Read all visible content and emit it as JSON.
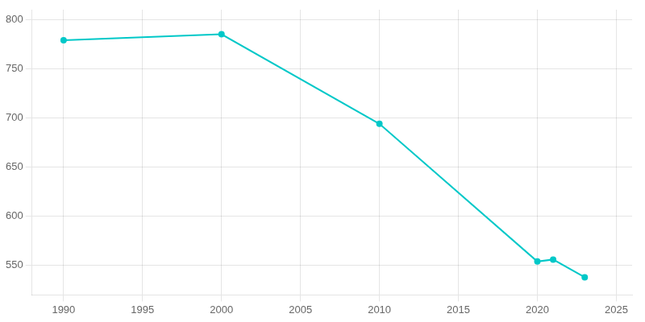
{
  "chart_data": {
    "type": "line",
    "x": [
      1990,
      2000,
      2010,
      2020,
      2021,
      2023
    ],
    "values": [
      779,
      785,
      694,
      554,
      556,
      538
    ],
    "color": "#00C8C8",
    "marker": "circle",
    "xlim": [
      1988,
      2026
    ],
    "ylim": [
      520,
      810
    ],
    "xticks": [
      1990,
      1995,
      2000,
      2005,
      2010,
      2015,
      2020,
      2025
    ],
    "yticks": [
      550,
      600,
      650,
      700,
      750,
      800
    ],
    "grid": true
  }
}
